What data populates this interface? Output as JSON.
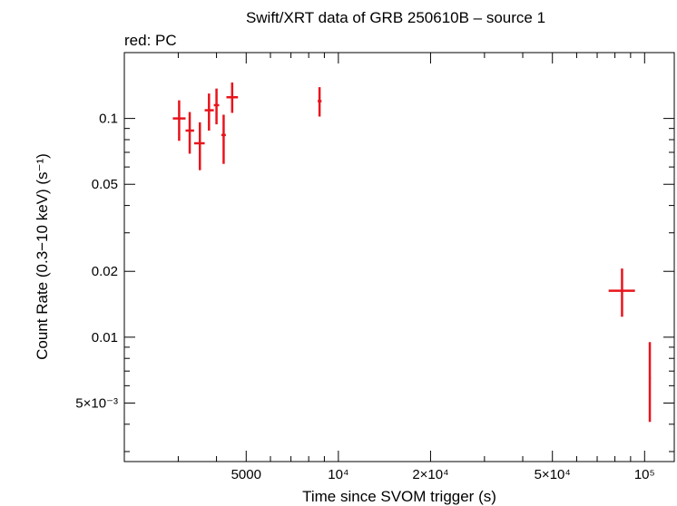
{
  "chart_data": {
    "type": "scatter",
    "title": "Swift/XRT data of GRB 250610B – source 1",
    "subtitle": "red: PC",
    "xlabel": "Time since SVOM trigger (s)",
    "ylabel": "Count Rate (0.3−10 keV) (s⁻¹)",
    "xscale": "log",
    "yscale": "log",
    "xlim": [
      2000,
      125000
    ],
    "ylim": [
      0.0027,
      0.2
    ],
    "x_ticks": [
      {
        "value": 5000,
        "label": "5000"
      },
      {
        "value": 10000,
        "label": "10⁴"
      },
      {
        "value": 20000,
        "label": "2×10⁴"
      },
      {
        "value": 50000,
        "label": "5×10⁴"
      },
      {
        "value": 100000,
        "label": "10⁵"
      }
    ],
    "y_ticks": [
      {
        "value": 0.1,
        "label": "0.1"
      },
      {
        "value": 0.05,
        "label": "0.05"
      },
      {
        "value": 0.02,
        "label": "0.02"
      },
      {
        "value": 0.01,
        "label": "0.01"
      },
      {
        "value": 0.005,
        "label": "5×10⁻³"
      }
    ],
    "grid": false,
    "color": "#e8141c",
    "series": [
      {
        "points": [
          {
            "x": 3020,
            "xlo": 2880,
            "xhi": 3170,
            "y": 0.1,
            "ylo": 0.079,
            "yhi": 0.121
          },
          {
            "x": 3270,
            "xlo": 3170,
            "xhi": 3380,
            "y": 0.088,
            "ylo": 0.069,
            "yhi": 0.107
          },
          {
            "x": 3530,
            "xlo": 3380,
            "xhi": 3660,
            "y": 0.077,
            "ylo": 0.058,
            "yhi": 0.096
          },
          {
            "x": 3780,
            "xlo": 3660,
            "xhi": 3920,
            "y": 0.109,
            "ylo": 0.088,
            "yhi": 0.13
          },
          {
            "x": 4000,
            "xlo": 3920,
            "xhi": 4080,
            "y": 0.115,
            "ylo": 0.094,
            "yhi": 0.137
          },
          {
            "x": 4220,
            "xlo": 4150,
            "xhi": 4290,
            "y": 0.084,
            "ylo": 0.062,
            "yhi": 0.104
          },
          {
            "x": 4500,
            "xlo": 4310,
            "xhi": 4700,
            "y": 0.125,
            "ylo": 0.106,
            "yhi": 0.146
          },
          {
            "x": 8680,
            "xlo": 8560,
            "xhi": 8810,
            "y": 0.12,
            "ylo": 0.102,
            "yhi": 0.139
          },
          {
            "x": 84400,
            "xlo": 76300,
            "xhi": 93000,
            "y": 0.0163,
            "ylo": 0.0124,
            "yhi": 0.0206
          },
          {
            "x": 104000,
            "xlo": 103400,
            "xhi": 104800,
            "y": 0.0065,
            "ylo": 0.0041,
            "yhi": 0.0095
          }
        ]
      }
    ]
  }
}
